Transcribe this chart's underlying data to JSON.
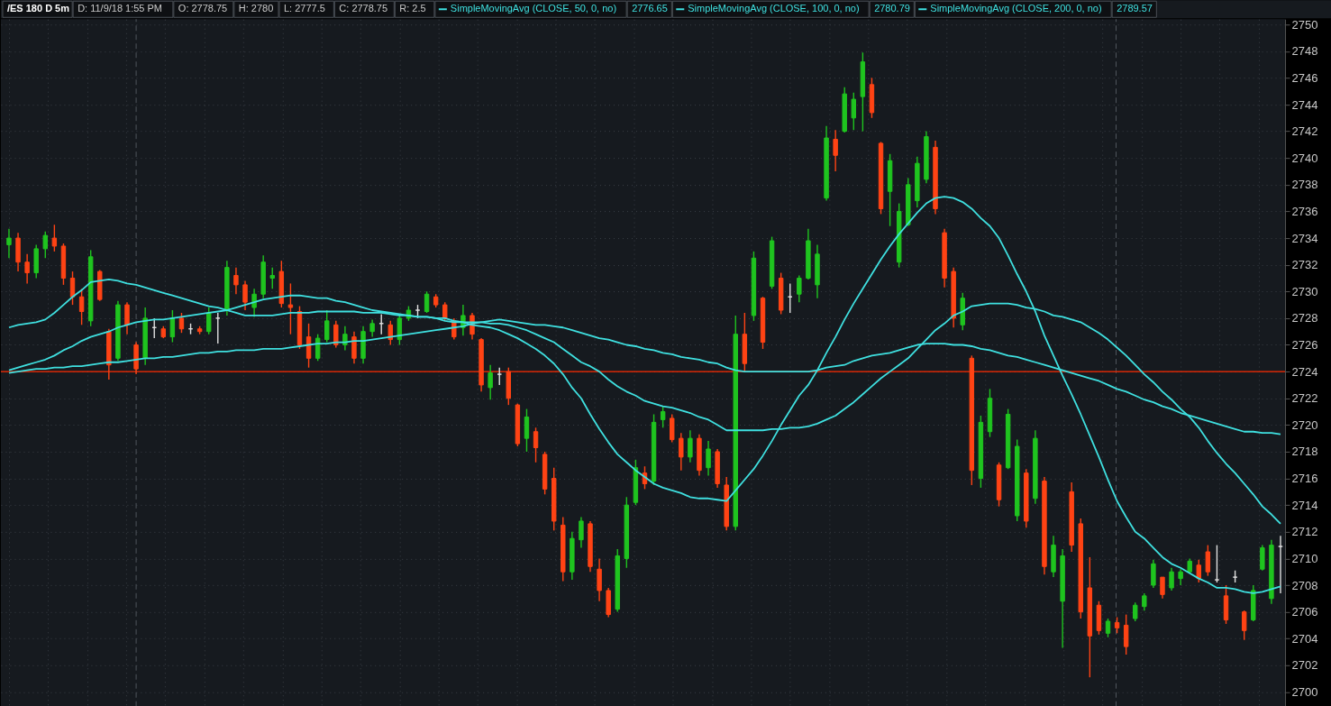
{
  "chart_data": {
    "type": "candlestick",
    "title": "/ES 180 D 5m",
    "annotations": [
      "D: 11/9/18 1:55 PM",
      "O: 2778.75",
      "H: 2780",
      "L: 2777.5",
      "C: 2778.75",
      "R: 2.5",
      "2776.65",
      "2780.79",
      "2789.57"
    ],
    "categories": [
      null,
      null,
      null,
      null,
      null,
      null,
      null,
      null,
      null,
      null,
      null,
      null,
      null,
      null,
      null,
      null,
      null,
      null,
      null,
      null,
      null,
      null,
      null,
      null,
      null,
      null,
      null,
      null,
      null,
      null,
      null,
      null,
      null,
      null,
      null,
      null,
      null,
      null,
      null,
      null,
      null,
      null,
      null,
      null,
      null,
      null,
      null,
      null,
      null,
      null,
      null,
      null,
      null,
      null,
      null,
      null,
      null,
      null,
      null,
      null,
      null,
      null,
      null,
      null,
      null,
      null,
      null,
      null,
      null,
      null,
      null,
      null,
      null,
      null,
      null,
      null,
      null,
      null,
      null,
      null,
      null,
      null,
      null,
      null,
      null,
      null,
      null,
      null,
      null,
      null,
      null,
      null,
      null,
      null,
      null,
      null,
      null,
      null,
      null,
      null,
      null,
      null,
      null,
      null,
      null,
      null,
      null,
      null,
      null,
      null,
      null,
      null,
      null,
      null,
      null,
      null,
      null,
      null,
      null,
      null,
      null,
      null,
      null,
      null,
      null,
      null,
      null,
      null,
      null,
      null,
      null,
      null,
      null,
      null,
      null,
      null,
      null,
      null,
      null,
      null,
      null
    ],
    "ohlc": [
      [
        2733.5,
        2734.7,
        2732.5,
        2734.0
      ],
      [
        2734,
        2734.4,
        2731.5,
        2732.2
      ],
      [
        2732.2,
        2732.8,
        2730.6,
        2731.4
      ],
      [
        2731.4,
        2733.5,
        2731,
        2733.2
      ],
      [
        2733.2,
        2734.5,
        2732.5,
        2734.2
      ],
      [
        2734,
        2735,
        2733,
        2733.4
      ],
      [
        2733.4,
        2733.6,
        2730.5,
        2731
      ],
      [
        2731,
        2731.5,
        2729,
        2729.6
      ],
      [
        2729.6,
        2730.2,
        2727.5,
        2728.5
      ],
      [
        2727.8,
        2733.1,
        2727.4,
        2732.6
      ],
      [
        2731.5,
        2731.6,
        2729.3,
        2729.4
      ],
      [
        2727,
        2727.2,
        2723.4,
        2724.5
      ],
      [
        2725,
        2729.3,
        2724.8,
        2729
      ],
      [
        2729,
        2729.2,
        2726.8,
        2727.5
      ],
      [
        2726,
        2726.2,
        2723.8,
        2724.2
      ],
      [
        2725,
        2728.8,
        2724.5,
        2728
      ],
      [
        2727.3,
        2728,
        2726.5,
        2727.3
      ],
      [
        2727.2,
        2727.4,
        2726.5,
        2726.6
      ],
      [
        2726.6,
        2728.6,
        2726.2,
        2728
      ],
      [
        2728,
        2728.4,
        2726.9,
        2727.2
      ],
      [
        2727.2,
        2727.6,
        2726.8,
        2727.2
      ],
      [
        2727.2,
        2727.4,
        2726.8,
        2727
      ],
      [
        2727,
        2728.8,
        2726.8,
        2728.4
      ],
      [
        2728,
        2728.4,
        2726.1,
        2728
      ],
      [
        2728.6,
        2732.3,
        2728.2,
        2731.8
      ],
      [
        2731.2,
        2731.8,
        2729.8,
        2730.5
      ],
      [
        2730.5,
        2730.8,
        2728.6,
        2729.2
      ],
      [
        2728.8,
        2730.2,
        2728.1,
        2729.8
      ],
      [
        2729.8,
        2732.7,
        2729.5,
        2732.2
      ],
      [
        2731,
        2731.8,
        2730.2,
        2731.2
      ],
      [
        2731.5,
        2732.3,
        2728.8,
        2729.1
      ],
      [
        2729,
        2730.6,
        2726.8,
        2728.8
      ],
      [
        2728.5,
        2728.9,
        2725.7,
        2726
      ],
      [
        2726.6,
        2727.6,
        2724.3,
        2725
      ],
      [
        2725,
        2726.8,
        2724.8,
        2726.5
      ],
      [
        2726.4,
        2728.6,
        2726.2,
        2727.8
      ],
      [
        2727.5,
        2727.8,
        2725.8,
        2726
      ],
      [
        2726,
        2727.4,
        2725.6,
        2726.8
      ],
      [
        2726.6,
        2727,
        2724.6,
        2725
      ],
      [
        2725,
        2727.4,
        2724.6,
        2727
      ],
      [
        2727,
        2727.9,
        2726.6,
        2727.6
      ],
      [
        2727.6,
        2728.3,
        2726.8,
        2727.6
      ],
      [
        2727.5,
        2727.8,
        2726,
        2726.4
      ],
      [
        2726.4,
        2728.2,
        2726,
        2728
      ],
      [
        2728,
        2728.9,
        2727.8,
        2728.6
      ],
      [
        2728.6,
        2729,
        2728,
        2728.6
      ],
      [
        2728.5,
        2730,
        2728.4,
        2729.8
      ],
      [
        2729.6,
        2729.8,
        2728.8,
        2729
      ],
      [
        2729,
        2729.2,
        2727.8,
        2728
      ],
      [
        2727.8,
        2728,
        2726.4,
        2726.6
      ],
      [
        2727.3,
        2729,
        2726.7,
        2728.2
      ],
      [
        2728.2,
        2728.4,
        2726.4,
        2726.8
      ],
      [
        2726.4,
        2726.5,
        2722.5,
        2723
      ],
      [
        2722.8,
        2724.5,
        2721.9,
        2723.9
      ],
      [
        2723.8,
        2724.3,
        2723,
        2723.8
      ],
      [
        2724,
        2724.3,
        2721.5,
        2722
      ],
      [
        2721.5,
        2721.6,
        2718.4,
        2718.6
      ],
      [
        2719,
        2721.2,
        2718,
        2720.6
      ],
      [
        2719.5,
        2719.8,
        2717.2,
        2718.3
      ],
      [
        2717.8,
        2718,
        2714.8,
        2715.2
      ],
      [
        2716,
        2716.8,
        2712.1,
        2712.8
      ],
      [
        2712.5,
        2713.1,
        2708.3,
        2709
      ],
      [
        2709,
        2712,
        2708.4,
        2711.5
      ],
      [
        2711.4,
        2713.1,
        2710.8,
        2712.8
      ],
      [
        2712.6,
        2712.8,
        2709,
        2709.4
      ],
      [
        2709.2,
        2710,
        2706.8,
        2707.6
      ],
      [
        2707.6,
        2707.8,
        2705.6,
        2705.8
      ],
      [
        2706.2,
        2710.7,
        2706,
        2710.2
      ],
      [
        2710,
        2714.6,
        2709.3,
        2714
      ],
      [
        2714.2,
        2717.4,
        2714,
        2716.8
      ],
      [
        2716.4,
        2716.9,
        2715.2,
        2715.6
      ],
      [
        2715.8,
        2720.8,
        2715.5,
        2720.2
      ],
      [
        2720.4,
        2721.4,
        2719.8,
        2721
      ],
      [
        2720.5,
        2720.8,
        2718.7,
        2718.9
      ],
      [
        2719,
        2719.4,
        2716.6,
        2717.6
      ],
      [
        2717.6,
        2719.6,
        2717.2,
        2719
      ],
      [
        2719,
        2719.3,
        2716.2,
        2716.6
      ],
      [
        2716.8,
        2718.8,
        2716.2,
        2718.2
      ],
      [
        2718,
        2718.2,
        2715.3,
        2715.6
      ],
      [
        2715.5,
        2716.1,
        2712.1,
        2712.4
      ],
      [
        2712.4,
        2728.2,
        2712.1,
        2726.8
      ],
      [
        2726.8,
        2728.4,
        2724,
        2724.6
      ],
      [
        2728.2,
        2733,
        2727.8,
        2732.5
      ],
      [
        2729.5,
        2729.6,
        2725.7,
        2726.2
      ],
      [
        2730.4,
        2734.1,
        2730.2,
        2733.8
      ],
      [
        2731,
        2731.4,
        2728.3,
        2728.6
      ],
      [
        2729.6,
        2730.6,
        2728.4,
        2729.6
      ],
      [
        2729.8,
        2731.2,
        2729.2,
        2731
      ],
      [
        2731,
        2734.7,
        2730.9,
        2733.8
      ],
      [
        2730.5,
        2733.5,
        2729.5,
        2732.8
      ],
      [
        2737,
        2742.4,
        2736.8,
        2741.5
      ],
      [
        2741.4,
        2742.1,
        2739,
        2740.2
      ],
      [
        2742,
        2745.3,
        2741.9,
        2744.8
      ],
      [
        2743,
        2744.9,
        2742.1,
        2744.4
      ],
      [
        2744.6,
        2747.9,
        2742,
        2747.2
      ],
      [
        2745.5,
        2746,
        2743,
        2743.4
      ],
      [
        2741.1,
        2741.2,
        2735.8,
        2736.2
      ],
      [
        2737.5,
        2740.3,
        2734.9,
        2739.8
      ],
      [
        2732.2,
        2736.6,
        2731.8,
        2736
      ],
      [
        2735,
        2738.5,
        2734.9,
        2738
      ],
      [
        2736.8,
        2740.1,
        2736.3,
        2739.6
      ],
      [
        2738.4,
        2742,
        2738.1,
        2741.6
      ],
      [
        2740.8,
        2741.3,
        2735.8,
        2736.2
      ],
      [
        2734.4,
        2734.7,
        2730.3,
        2731
      ],
      [
        2731.5,
        2731.8,
        2727.3,
        2728
      ],
      [
        2727.5,
        2729.9,
        2727.1,
        2729.5
      ],
      [
        2725,
        2725.2,
        2715.5,
        2716.6
      ],
      [
        2716,
        2720.7,
        2715.3,
        2720.2
      ],
      [
        2719.5,
        2722.7,
        2719.1,
        2722
      ],
      [
        2717,
        2717.2,
        2713.9,
        2714.4
      ],
      [
        2716.8,
        2721.2,
        2716.7,
        2720.8
      ],
      [
        2713.2,
        2718.9,
        2712.8,
        2718.4
      ],
      [
        2716.4,
        2716.7,
        2712.3,
        2712.8
      ],
      [
        2714.5,
        2719.6,
        2714.1,
        2719
      ],
      [
        2715.8,
        2716.1,
        2708.8,
        2709.4
      ],
      [
        2709,
        2711.7,
        2708.6,
        2711
      ],
      [
        2706.8,
        2710.7,
        2703.3,
        2710.2
      ],
      [
        2715,
        2715.7,
        2710.5,
        2711
      ],
      [
        2712.6,
        2713,
        2705.5,
        2706
      ],
      [
        2707.8,
        2710.1,
        2701.1,
        2704.2
      ],
      [
        2706.5,
        2706.8,
        2704.3,
        2704.6
      ],
      [
        2704.4,
        2705.5,
        2704.1,
        2705.3
      ],
      [
        2705.2,
        2705.6,
        2704.4,
        2704.8
      ],
      [
        2705,
        2705.8,
        2702.8,
        2703.4
      ],
      [
        2705.5,
        2706.7,
        2705.3,
        2706.5
      ],
      [
        2706.4,
        2707.4,
        2706.1,
        2707.2
      ],
      [
        2708,
        2709.9,
        2707.8,
        2709.6
      ],
      [
        2708.6,
        2708.6,
        2707,
        2707.3
      ],
      [
        2707.8,
        2709.3,
        2707.6,
        2709
      ],
      [
        2708.5,
        2709.2,
        2708,
        2709
      ],
      [
        2709,
        2710,
        2708.9,
        2709.8
      ],
      [
        2709.5,
        2709.9,
        2708.2,
        2708.5
      ],
      [
        2710.5,
        2711,
        2708.7,
        2709
      ],
      [
        2708.4,
        2711,
        2708.2,
        2708.4
      ],
      [
        2707.2,
        2708,
        2705.1,
        2705.4
      ],
      [
        2708.6,
        2709.1,
        2708.2,
        2708.6
      ],
      [
        2706,
        2706.1,
        2703.9,
        2704.6
      ],
      [
        2705.4,
        2708,
        2705.3,
        2707.6
      ],
      [
        2709.2,
        2711,
        2709.1,
        2710.8
      ],
      [
        2707,
        2711.4,
        2706.6,
        2711
      ],
      [
        2710.9,
        2711.7,
        2707.4,
        2710.9
      ]
    ],
    "colors": [
      "#1fc41f",
      "#ff4314",
      "#ff4314",
      "#1fc41f",
      "#1fc41f",
      "#ff4314",
      "#ff4314",
      "#ff4314",
      "#ff4314",
      "#1fc41f",
      "#ff4314",
      "#ff4314",
      "#1fc41f",
      "#ff4314",
      "#ff4314",
      "#1fc41f",
      "#e0e0e0",
      "#ff4314",
      "#1fc41f",
      "#ff4314",
      "#e0e0e0",
      "#ff4314",
      "#1fc41f",
      "#e0e0e0",
      "#1fc41f",
      "#ff4314",
      "#ff4314",
      "#1fc41f",
      "#1fc41f",
      "#1fc41f",
      "#ff4314",
      "#ff4314",
      "#ff4314",
      "#ff4314",
      "#1fc41f",
      "#1fc41f",
      "#ff4314",
      "#1fc41f",
      "#ff4314",
      "#1fc41f",
      "#1fc41f",
      "#e0e0e0",
      "#ff4314",
      "#1fc41f",
      "#1fc41f",
      "#e0e0e0",
      "#1fc41f",
      "#ff4314",
      "#ff4314",
      "#ff4314",
      "#1fc41f",
      "#ff4314",
      "#ff4314",
      "#1fc41f",
      "#e0e0e0",
      "#ff4314",
      "#ff4314",
      "#1fc41f",
      "#ff4314",
      "#ff4314",
      "#ff4314",
      "#ff4314",
      "#1fc41f",
      "#1fc41f",
      "#ff4314",
      "#ff4314",
      "#ff4314",
      "#1fc41f",
      "#1fc41f",
      "#1fc41f",
      "#ff4314",
      "#1fc41f",
      "#1fc41f",
      "#ff4314",
      "#ff4314",
      "#1fc41f",
      "#ff4314",
      "#1fc41f",
      "#ff4314",
      "#ff4314",
      "#1fc41f",
      "#ff4314",
      "#1fc41f",
      "#ff4314",
      "#1fc41f",
      "#ff4314",
      "#e0e0e0",
      "#1fc41f",
      "#1fc41f",
      "#1fc41f",
      "#1fc41f",
      "#ff4314",
      "#1fc41f",
      "#1fc41f",
      "#1fc41f",
      "#ff4314",
      "#ff4314",
      "#1fc41f",
      "#1fc41f",
      "#1fc41f",
      "#1fc41f",
      "#1fc41f",
      "#ff4314",
      "#ff4314",
      "#ff4314",
      "#1fc41f",
      "#ff4314",
      "#1fc41f",
      "#1fc41f",
      "#ff4314",
      "#1fc41f",
      "#1fc41f",
      "#ff4314",
      "#1fc41f",
      "#ff4314",
      "#1fc41f",
      "#1fc41f",
      "#ff4314",
      "#ff4314",
      "#ff4314",
      "#ff4314",
      "#1fc41f",
      "#ff4314",
      "#ff4314",
      "#1fc41f",
      "#1fc41f",
      "#1fc41f",
      "#ff4314",
      "#1fc41f",
      "#1fc41f",
      "#1fc41f",
      "#ff4314",
      "#ff4314",
      "#e0e0e0",
      "#ff4314",
      "#e0e0e0",
      "#ff4314",
      "#1fc41f",
      "#1fc41f",
      "#1fc41f",
      "#e0e0e0"
    ],
    "series": [
      {
        "name": "SimpleMovingAvg (CLOSE, 50, 0, no)",
        "type": "line",
        "color": "#3fe0e0",
        "values": [
          2727.3,
          2727.5,
          2727.6,
          2727.7,
          2727.9,
          2728.4,
          2729.0,
          2729.6,
          2730.1,
          2730.7,
          2730.8,
          2730.9,
          2730.8,
          2730.6,
          2730.5,
          2730.3,
          2730.1,
          2729.9,
          2729.7,
          2729.5,
          2729.3,
          2729.1,
          2728.9,
          2728.8,
          2728.6,
          2728.8,
          2729.0,
          2729.2,
          2729.4,
          2729.5,
          2729.6,
          2729.7,
          2729.7,
          2729.6,
          2729.5,
          2729.5,
          2729.3,
          2729.2,
          2729.0,
          2728.8,
          2728.6,
          2728.5,
          2728.4,
          2728.3,
          2728.2,
          2728.1,
          2728.1,
          2728.0,
          2728.0,
          2727.8,
          2727.7,
          2727.5,
          2727.4,
          2727.3,
          2727.1,
          2726.8,
          2726.5,
          2726.1,
          2725.7,
          2725.2,
          2724.6,
          2723.8,
          2722.8,
          2722.0,
          2720.8,
          2719.7,
          2718.7,
          2717.8,
          2717.2,
          2716.6,
          2716.1,
          2715.6,
          2715.3,
          2715.1,
          2714.9,
          2714.6,
          2714.5,
          2714.5,
          2714.4,
          2714.3,
          2715.1,
          2715.9,
          2716.7,
          2717.7,
          2718.8,
          2720.0,
          2721.1,
          2722.2,
          2723.0,
          2724.1,
          2725.4,
          2726.6,
          2727.9,
          2729.1,
          2730.2,
          2731.3,
          2732.4,
          2733.4,
          2734.3,
          2735.1,
          2735.9,
          2736.6,
          2737.0,
          2737.1,
          2737.0,
          2736.7,
          2736.2,
          2735.5,
          2734.9,
          2734.0,
          2732.7,
          2731.3,
          2730.0,
          2728.5,
          2726.7,
          2725.2,
          2723.7,
          2722.3,
          2720.8,
          2719.2,
          2717.6,
          2715.9,
          2714.3,
          2713.1,
          2712.0,
          2711.5,
          2710.8,
          2710.1,
          2709.6,
          2709.3,
          2708.9,
          2708.5,
          2708.2,
          2707.8,
          2707.8,
          2707.7,
          2707.5,
          2707.4,
          2707.5,
          2707.7,
          2707.9
        ]
      },
      {
        "name": "SimpleMovingAvg (CLOSE, 100, 0, no)",
        "type": "line",
        "color": "#3fe0e0",
        "values": [
          2724.1,
          2724.3,
          2724.5,
          2724.7,
          2724.9,
          2725.2,
          2725.6,
          2725.9,
          2726.3,
          2726.6,
          2726.8,
          2727.0,
          2727.3,
          2727.5,
          2727.7,
          2727.8,
          2727.9,
          2727.9,
          2728.0,
          2728.1,
          2728.2,
          2728.3,
          2728.4,
          2728.5,
          2728.6,
          2728.4,
          2728.2,
          2728.2,
          2728.2,
          2728.2,
          2728.3,
          2728.4,
          2728.4,
          2728.4,
          2728.5,
          2728.5,
          2728.5,
          2728.5,
          2728.5,
          2728.4,
          2728.4,
          2728.4,
          2728.3,
          2728.2,
          2728.2,
          2728.1,
          2728.1,
          2728.0,
          2727.8,
          2727.7,
          2727.7,
          2727.7,
          2727.7,
          2727.6,
          2727.6,
          2727.5,
          2727.3,
          2727.1,
          2726.8,
          2726.5,
          2726.2,
          2725.7,
          2725.2,
          2724.7,
          2724.4,
          2724.0,
          2723.4,
          2722.9,
          2722.5,
          2722.2,
          2721.8,
          2721.6,
          2721.4,
          2721.3,
          2721.1,
          2720.9,
          2720.6,
          2720.4,
          2720.0,
          2719.6,
          2719.6,
          2719.6,
          2719.6,
          2719.6,
          2719.7,
          2719.7,
          2719.8,
          2719.8,
          2719.9,
          2720.1,
          2720.4,
          2720.7,
          2721.2,
          2721.7,
          2722.3,
          2722.9,
          2723.5,
          2724.0,
          2724.5,
          2725.0,
          2725.7,
          2726.4,
          2727.1,
          2727.6,
          2728.2,
          2728.5,
          2728.9,
          2729.0,
          2729.1,
          2729.1,
          2729.1,
          2729.0,
          2728.8,
          2728.7,
          2728.5,
          2728.2,
          2728.1,
          2727.9,
          2727.7,
          2727.3,
          2726.9,
          2726.4,
          2725.8,
          2725.2,
          2724.5,
          2723.8,
          2723.2,
          2722.5,
          2721.9,
          2721.2,
          2720.6,
          2719.8,
          2718.8,
          2717.9,
          2717.1,
          2716.4,
          2715.6,
          2714.8,
          2713.9,
          2713.3,
          2712.6
        ]
      },
      {
        "name": "SimpleMovingAvg (CLOSE, 200, 0, no)",
        "type": "line",
        "color": "#3fe0e0",
        "values": [
          2723.9,
          2724.0,
          2724.1,
          2724.2,
          2724.2,
          2724.3,
          2724.3,
          2724.4,
          2724.4,
          2724.5,
          2724.6,
          2724.7,
          2724.7,
          2724.8,
          2724.9,
          2725.0,
          2725.0,
          2725.1,
          2725.1,
          2725.2,
          2725.3,
          2725.4,
          2725.4,
          2725.5,
          2725.5,
          2725.6,
          2725.6,
          2725.6,
          2725.7,
          2725.7,
          2725.7,
          2725.8,
          2725.9,
          2726.0,
          2726.1,
          2726.1,
          2726.2,
          2726.2,
          2726.3,
          2726.3,
          2726.4,
          2726.5,
          2726.6,
          2726.7,
          2726.8,
          2726.9,
          2727.0,
          2727.1,
          2727.2,
          2727.3,
          2727.4,
          2727.6,
          2727.7,
          2727.8,
          2727.9,
          2727.8,
          2727.7,
          2727.6,
          2727.5,
          2727.5,
          2727.4,
          2727.3,
          2727.1,
          2726.9,
          2726.7,
          2726.5,
          2726.4,
          2726.2,
          2726.0,
          2725.9,
          2725.7,
          2725.6,
          2725.4,
          2725.3,
          2725.1,
          2725.0,
          2724.9,
          2724.7,
          2724.6,
          2724.3,
          2724.1,
          2724.0,
          2724.0,
          2724.0,
          2724.0,
          2724.0,
          2724.0,
          2724.0,
          2724.0,
          2724.1,
          2724.3,
          2724.4,
          2724.5,
          2724.8,
          2725.0,
          2725.2,
          2725.3,
          2725.4,
          2725.6,
          2725.8,
          2726.0,
          2726.1,
          2726.1,
          2726.1,
          2726.0,
          2726.0,
          2725.9,
          2725.7,
          2725.6,
          2725.4,
          2725.2,
          2725.1,
          2724.9,
          2724.7,
          2724.5,
          2724.3,
          2724.1,
          2723.9,
          2723.7,
          2723.5,
          2723.3,
          2723.0,
          2722.7,
          2722.5,
          2722.2,
          2721.9,
          2721.7,
          2721.4,
          2721.2,
          2720.9,
          2720.7,
          2720.5,
          2720.3,
          2720.1,
          2719.9,
          2719.7,
          2719.5,
          2719.5,
          2719.4,
          2719.4,
          2719.3
        ]
      }
    ],
    "ref_lines": [
      {
        "axis": "y",
        "value": 2724,
        "color": "#ff2a00"
      }
    ],
    "ylim": [
      2698.9,
      2750.4
    ],
    "yticks": [
      2700,
      2702,
      2704,
      2706,
      2708,
      2710,
      2712,
      2714,
      2716,
      2718,
      2720,
      2722,
      2724,
      2726,
      2728,
      2730,
      2732,
      2734,
      2736,
      2738,
      2740,
      2742,
      2744,
      2746,
      2748,
      2750
    ],
    "grid": true,
    "legend": "top",
    "tick_labels": "y",
    "line_style": "solid"
  }
}
